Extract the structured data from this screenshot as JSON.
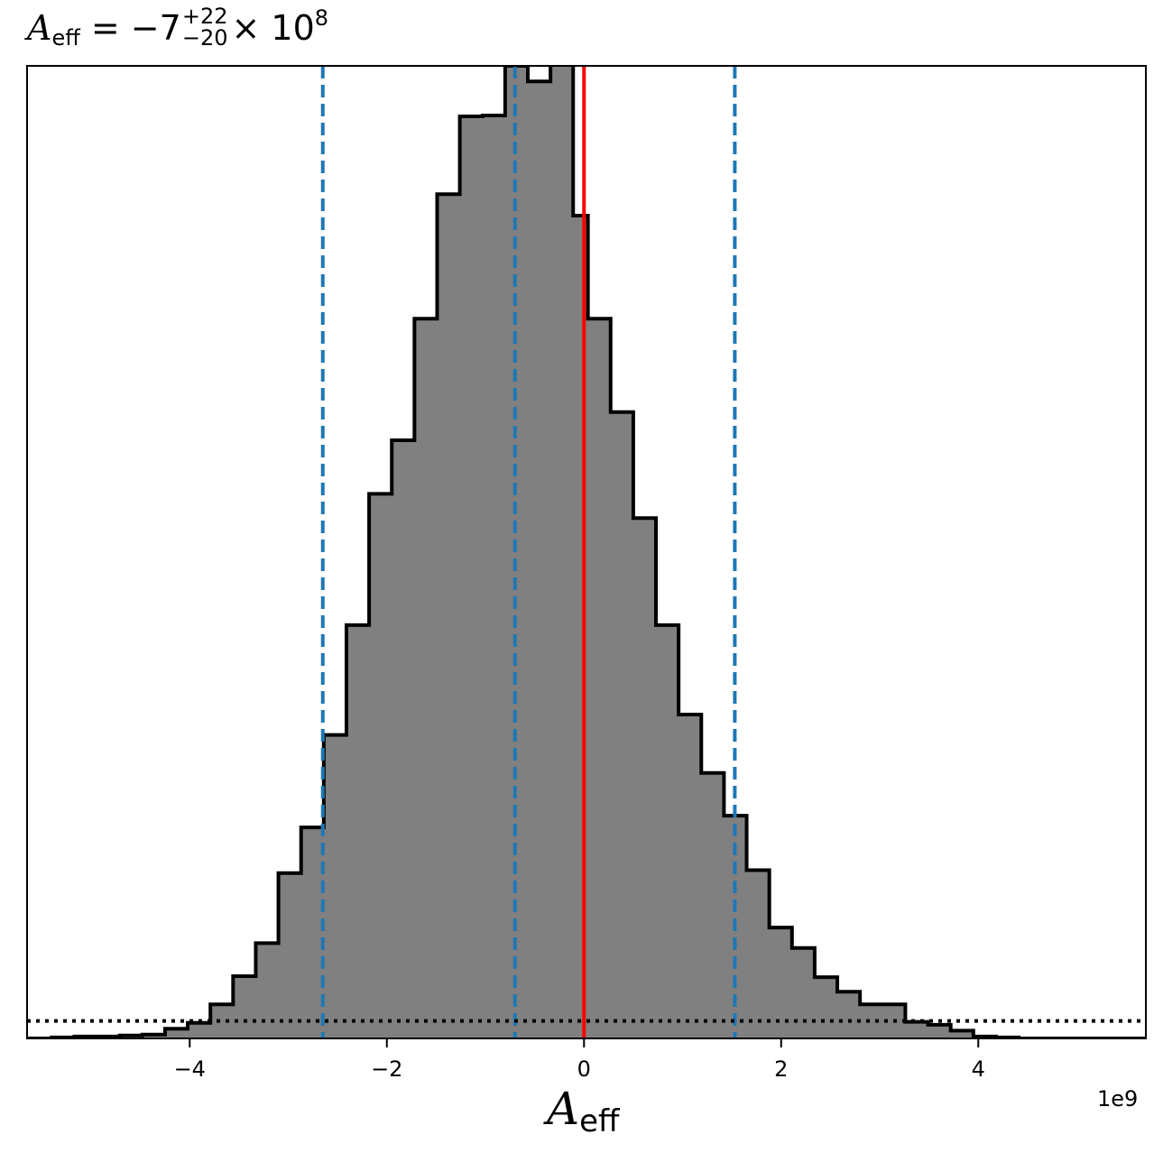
{
  "chart_data": {
    "type": "histogram",
    "title": {
      "symbol": "A",
      "subscript": "eff",
      "equals": "=",
      "value": "−7",
      "sup": "+22",
      "sub": "−20",
      "times": "×",
      "base": "10",
      "exponent": "8"
    },
    "xlabel": {
      "symbol": "A",
      "subscript": "eff"
    },
    "x_offset_label": "1e9",
    "xlim": [
      -5.65,
      5.7
    ],
    "ylim": [
      0,
      1.0
    ],
    "x_ticks": [
      -4,
      -2,
      0,
      2,
      4
    ],
    "x_tick_labels": [
      "−4",
      "−2",
      "0",
      "2",
      "4"
    ],
    "show_y_ticks": false,
    "grid": false,
    "histogram": {
      "fill_color": "#808080",
      "edge_color": "#000000",
      "bins": [
        {
          "x0": -5.65,
          "x1": -5.4,
          "height": 0.0
        },
        {
          "x0": -5.4,
          "x1": -5.17,
          "height": 0.001
        },
        {
          "x0": -5.17,
          "x1": -4.94,
          "height": 0.002
        },
        {
          "x0": -4.94,
          "x1": -4.71,
          "height": 0.002
        },
        {
          "x0": -4.71,
          "x1": -4.48,
          "height": 0.003
        },
        {
          "x0": -4.48,
          "x1": -4.25,
          "height": 0.004
        },
        {
          "x0": -4.25,
          "x1": -4.02,
          "height": 0.01
        },
        {
          "x0": -4.02,
          "x1": -3.79,
          "height": 0.016
        },
        {
          "x0": -3.79,
          "x1": -3.56,
          "height": 0.035
        },
        {
          "x0": -3.56,
          "x1": -3.33,
          "height": 0.064
        },
        {
          "x0": -3.33,
          "x1": -3.1,
          "height": 0.098
        },
        {
          "x0": -3.1,
          "x1": -2.87,
          "height": 0.17
        },
        {
          "x0": -2.87,
          "x1": -2.64,
          "height": 0.217
        },
        {
          "x0": -2.64,
          "x1": -2.41,
          "height": 0.312
        },
        {
          "x0": -2.41,
          "x1": -2.18,
          "height": 0.425
        },
        {
          "x0": -2.18,
          "x1": -1.95,
          "height": 0.56
        },
        {
          "x0": -1.95,
          "x1": -1.72,
          "height": 0.615
        },
        {
          "x0": -1.72,
          "x1": -1.49,
          "height": 0.74
        },
        {
          "x0": -1.49,
          "x1": -1.26,
          "height": 0.868
        },
        {
          "x0": -1.26,
          "x1": -1.03,
          "height": 0.948
        },
        {
          "x0": -1.03,
          "x1": -0.8,
          "height": 0.949
        },
        {
          "x0": -0.8,
          "x1": -0.57,
          "height": 1.0
        },
        {
          "x0": -0.57,
          "x1": -0.34,
          "height": 0.984
        },
        {
          "x0": -0.34,
          "x1": -0.11,
          "height": 1.003
        },
        {
          "x0": -0.11,
          "x1": 0.04,
          "height": 0.846
        },
        {
          "x0": 0.04,
          "x1": 0.27,
          "height": 0.74
        },
        {
          "x0": 0.27,
          "x1": 0.5,
          "height": 0.644
        },
        {
          "x0": 0.5,
          "x1": 0.73,
          "height": 0.535
        },
        {
          "x0": 0.73,
          "x1": 0.96,
          "height": 0.425
        },
        {
          "x0": 0.96,
          "x1": 1.19,
          "height": 0.333
        },
        {
          "x0": 1.19,
          "x1": 1.42,
          "height": 0.273
        },
        {
          "x0": 1.42,
          "x1": 1.65,
          "height": 0.229
        },
        {
          "x0": 1.65,
          "x1": 1.88,
          "height": 0.173
        },
        {
          "x0": 1.88,
          "x1": 2.11,
          "height": 0.114
        },
        {
          "x0": 2.11,
          "x1": 2.34,
          "height": 0.093
        },
        {
          "x0": 2.34,
          "x1": 2.57,
          "height": 0.063
        },
        {
          "x0": 2.57,
          "x1": 2.8,
          "height": 0.048
        },
        {
          "x0": 2.8,
          "x1": 3.26,
          "height": 0.035
        },
        {
          "x0": 3.26,
          "x1": 3.49,
          "height": 0.017
        },
        {
          "x0": 3.49,
          "x1": 3.72,
          "height": 0.014
        },
        {
          "x0": 3.72,
          "x1": 3.95,
          "height": 0.008
        },
        {
          "x0": 3.95,
          "x1": 4.18,
          "height": 0.002
        },
        {
          "x0": 4.18,
          "x1": 4.41,
          "height": 0.001
        },
        {
          "x0": 4.41,
          "x1": 5.7,
          "height": 0.0
        }
      ]
    },
    "vertical_lines": [
      {
        "name": "lower-bound",
        "x": -2.65,
        "color": "#1f77b4",
        "style": "dashed"
      },
      {
        "name": "median",
        "x": -0.7,
        "color": "#1f77b4",
        "style": "dashed"
      },
      {
        "name": "upper-bound",
        "x": 1.53,
        "color": "#1f77b4",
        "style": "dashed"
      },
      {
        "name": "reference-zero",
        "x": 0.0,
        "color": "#ff0000",
        "style": "solid"
      }
    ],
    "horizontal_lines": [
      {
        "name": "prior-level",
        "x_from": -5.65,
        "x_to": 5.7,
        "y_left": 0.018,
        "y_right": 0.018,
        "color": "#000000",
        "style": "dotted"
      }
    ]
  }
}
